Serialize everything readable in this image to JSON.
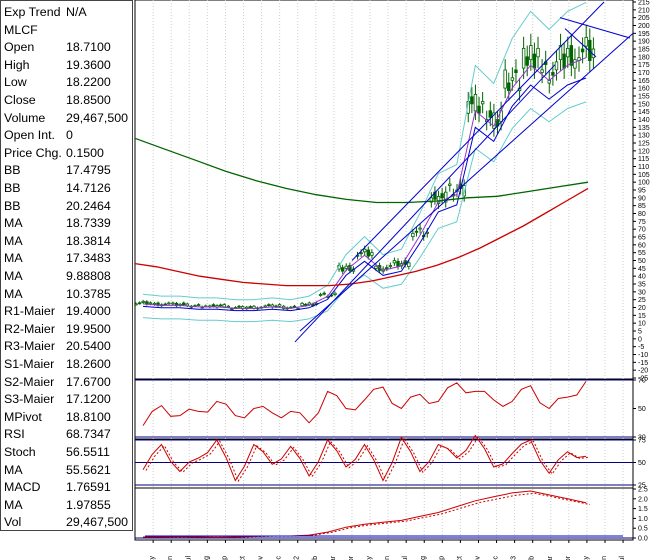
{
  "info_panel": {
    "rows": [
      {
        "label": "Exp Trend",
        "value": "N/A"
      },
      {
        "label": "MLCF",
        "value": ""
      },
      {
        "label": "Open",
        "value": "18.7100"
      },
      {
        "label": "High",
        "value": "19.3600"
      },
      {
        "label": "Low",
        "value": "18.2200"
      },
      {
        "label": "Close",
        "value": "18.8500"
      },
      {
        "label": "Volume",
        "value": "29,467,500"
      },
      {
        "label": "Open Int.",
        "value": "0"
      },
      {
        "label": "Price Chg.",
        "value": "0.1500"
      },
      {
        "label": "BB",
        "value": "17.4795"
      },
      {
        "label": "BB",
        "value": "14.7126"
      },
      {
        "label": "BB",
        "value": "20.2464"
      },
      {
        "label": "MA",
        "value": "18.7339"
      },
      {
        "label": "MA",
        "value": "18.3814"
      },
      {
        "label": "MA",
        "value": "17.3483"
      },
      {
        "label": "MA",
        "value": "9.88808"
      },
      {
        "label": "MA",
        "value": "10.3785"
      },
      {
        "label": "R1-Maier",
        "value": "19.4000"
      },
      {
        "label": "R2-Maier",
        "value": "19.9500"
      },
      {
        "label": "R3-Maier",
        "value": "20.5400"
      },
      {
        "label": "S1-Maier",
        "value": "18.2600"
      },
      {
        "label": "S2-Maier",
        "value": "17.6700"
      },
      {
        "label": "S3-Maier",
        "value": "17.1200"
      },
      {
        "label": "MPivot",
        "value": "18.8100"
      },
      {
        "label": "RSI",
        "value": "68.7347"
      },
      {
        "label": "Stoch",
        "value": "56.5511"
      },
      {
        "label": "MA",
        "value": "55.5621"
      },
      {
        "label": "MACD",
        "value": "1.76591"
      },
      {
        "label": "MA",
        "value": "1.97855"
      },
      {
        "label": "Vol",
        "value": "29,467,500"
      }
    ]
  },
  "colors": {
    "candle": "#006400",
    "bollinger": "#66cccc",
    "ma_long": "#006400",
    "ma_mid": "#cc0000",
    "trend_channel": "#0000cc",
    "rsi": "#cc0000",
    "stoch": "#cc0000",
    "macd": "#cc0000",
    "hline": "#000080"
  },
  "chart_data": [
    {
      "panel": "price",
      "type": "line",
      "ylim": [
        -25,
        215
      ],
      "y_ticks": [
        215,
        210,
        205,
        200,
        195,
        190,
        185,
        180,
        175,
        170,
        165,
        160,
        155,
        150,
        145,
        140,
        135,
        130,
        125,
        120,
        115,
        110,
        105,
        100,
        95,
        90,
        85,
        80,
        75,
        70,
        65,
        60,
        55,
        50,
        45,
        40,
        35,
        30,
        25,
        20,
        15,
        10,
        5,
        0,
        -5,
        -10,
        -15,
        -20,
        -25
      ],
      "x_labels": [
        "May",
        "Jun",
        "Jul",
        "Aug",
        "Sep",
        "Oct",
        "Nov",
        "Dec",
        "2012",
        "Feb",
        "Mar",
        "Apr",
        "May",
        "Jun",
        "Jul",
        "Aug",
        "Sep",
        "Oct",
        "Nov",
        "Dec",
        "2013",
        "Feb",
        "Mar",
        "Apr",
        "May",
        "Jun",
        "Jul"
      ],
      "series": [
        {
          "values": [
            23,
            22,
            22,
            21,
            21,
            20,
            20,
            21,
            20,
            22,
            28,
            45,
            55,
            45,
            48,
            68,
            90,
            95,
            150,
            140,
            165,
            180,
            170,
            180,
            185
          ]
        },
        {
          "values": [
            48,
            46,
            43,
            40,
            38,
            36,
            35,
            34,
            34,
            34,
            35,
            37,
            40,
            43,
            47,
            52,
            58,
            65,
            72,
            80,
            88,
            96
          ]
        },
        {
          "values": [
            128,
            121,
            114,
            107,
            101,
            96,
            92,
            89,
            87,
            87,
            88,
            90,
            91,
            94,
            97,
            100
          ]
        }
      ]
    },
    {
      "panel": "rsi",
      "type": "line",
      "ylim": [
        30,
        70
      ],
      "y_ticks": [
        70,
        50,
        30
      ],
      "series": [
        {
          "values": [
            38,
            52,
            45,
            48,
            55,
            45,
            50,
            47,
            48,
            40,
            62,
            50,
            56,
            65,
            50,
            60,
            55,
            68,
            62,
            56,
            55,
            66,
            50,
            58,
            69
          ]
        }
      ]
    },
    {
      "panel": "stoch",
      "type": "line",
      "ylim": [
        25,
        75
      ],
      "y_ticks": [
        75,
        50,
        25
      ],
      "series": [
        {
          "values": [
            42,
            70,
            40,
            55,
            75,
            30,
            70,
            48,
            68,
            35,
            75,
            45,
            70,
            30,
            78,
            40,
            70,
            55,
            80,
            45,
            60,
            75,
            38,
            62,
            57
          ]
        }
      ]
    },
    {
      "panel": "macd",
      "type": "line",
      "ylim": [
        0,
        2.5
      ],
      "y_ticks": [
        2.5,
        2.0,
        1.5,
        1.0,
        0.5,
        0.0
      ],
      "series": [
        {
          "values": [
            0.05,
            0.05,
            0.06,
            0.05,
            0.04,
            0.05,
            0.08,
            0.1,
            0.1,
            0.15,
            0.3,
            0.55,
            0.7,
            0.8,
            0.9,
            1.1,
            1.3,
            1.6,
            1.9,
            2.1,
            2.3,
            2.4,
            2.2,
            2.0,
            1.8
          ]
        }
      ]
    }
  ]
}
